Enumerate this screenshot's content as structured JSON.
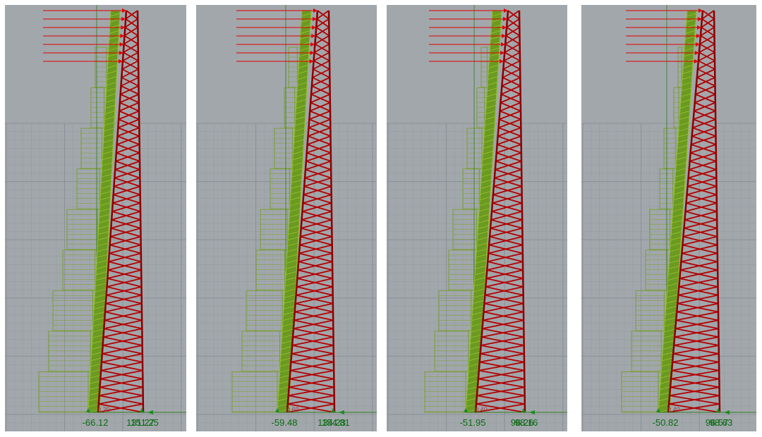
{
  "panels": [
    {
      "moment_label": "-66.12",
      "reaction_labels": [
        "131.27",
        "151.25"
      ],
      "small_label": "0.20"
    },
    {
      "moment_label": "-59.48",
      "reaction_labels": [
        "134.23",
        "154.81"
      ],
      "small_label": "0.60"
    },
    {
      "moment_label": "-51.95",
      "reaction_labels": [
        "96.26",
        "98.16"
      ],
      "small_label": "0.40"
    },
    {
      "moment_label": "-50.82",
      "reaction_labels": [
        "96.57",
        "98.63"
      ],
      "small_label": "0.40"
    }
  ]
}
